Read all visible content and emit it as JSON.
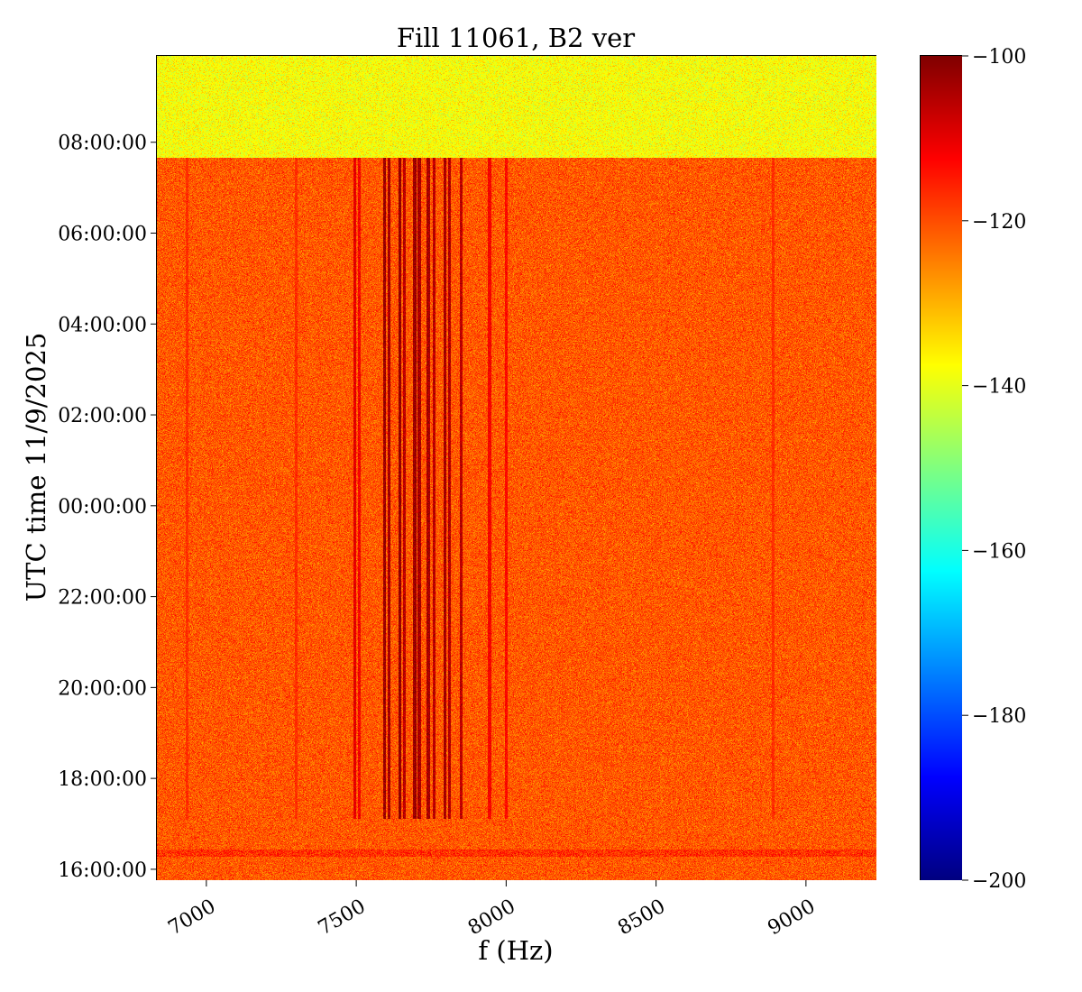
{
  "chart_data": {
    "type": "heatmap",
    "title": "Fill 11061, B2 ver",
    "xlabel": "f (Hz)",
    "ylabel": "UTC time 11/9/2025",
    "x_ticks": [
      {
        "value": 7000,
        "label": "7000"
      },
      {
        "value": 7500,
        "label": "7500"
      },
      {
        "value": 8000,
        "label": "8000"
      },
      {
        "value": 8500,
        "label": "8500"
      },
      {
        "value": 9000,
        "label": "9000"
      }
    ],
    "xlim": [
      6835,
      9235
    ],
    "y_ticks": [
      {
        "value": 0,
        "label": "16:00:00"
      },
      {
        "value": 2,
        "label": "18:00:00"
      },
      {
        "value": 4,
        "label": "20:00:00"
      },
      {
        "value": 6,
        "label": "22:00:00"
      },
      {
        "value": 8,
        "label": "00:00:00"
      },
      {
        "value": 10,
        "label": "02:00:00"
      },
      {
        "value": 12,
        "label": "04:00:00"
      },
      {
        "value": 14,
        "label": "06:00:00"
      },
      {
        "value": 16,
        "label": "08:00:00"
      }
    ],
    "ylim": [
      -0.24,
      17.9
    ],
    "colorbar": {
      "colormap": "jet",
      "range": [
        -200,
        -100
      ],
      "ticks": [
        {
          "value": -100,
          "label": "−100"
        },
        {
          "value": -120,
          "label": "−120"
        },
        {
          "value": -140,
          "label": "−140"
        },
        {
          "value": -160,
          "label": "−160"
        },
        {
          "value": -180,
          "label": "−180"
        },
        {
          "value": -200,
          "label": "−200"
        }
      ]
    },
    "regions": {
      "no_beam_level_db": -138,
      "no_beam_after_hour": 15.65,
      "background_level_db": -121,
      "beam_start_hour": 1.1,
      "injection_band_hour": 0.35,
      "lines_band_hz": [
        7500,
        7860
      ]
    },
    "lines": [
      {
        "f": 7495,
        "level_db": -110
      },
      {
        "f": 7510,
        "level_db": -112
      },
      {
        "f": 7595,
        "level_db": -103
      },
      {
        "f": 7610,
        "level_db": -104
      },
      {
        "f": 7645,
        "level_db": -102
      },
      {
        "f": 7660,
        "level_db": -106
      },
      {
        "f": 7695,
        "level_db": -103
      },
      {
        "f": 7710,
        "level_db": -104
      },
      {
        "f": 7740,
        "level_db": -104
      },
      {
        "f": 7760,
        "level_db": -106
      },
      {
        "f": 7795,
        "level_db": -104
      },
      {
        "f": 7810,
        "level_db": -105
      },
      {
        "f": 7850,
        "level_db": -106
      },
      {
        "f": 7945,
        "level_db": -112
      },
      {
        "f": 8000,
        "level_db": -113
      },
      {
        "f": 7300,
        "level_db": -117
      },
      {
        "f": 6935,
        "level_db": -117
      },
      {
        "f": 8890,
        "level_db": -117
      }
    ]
  }
}
